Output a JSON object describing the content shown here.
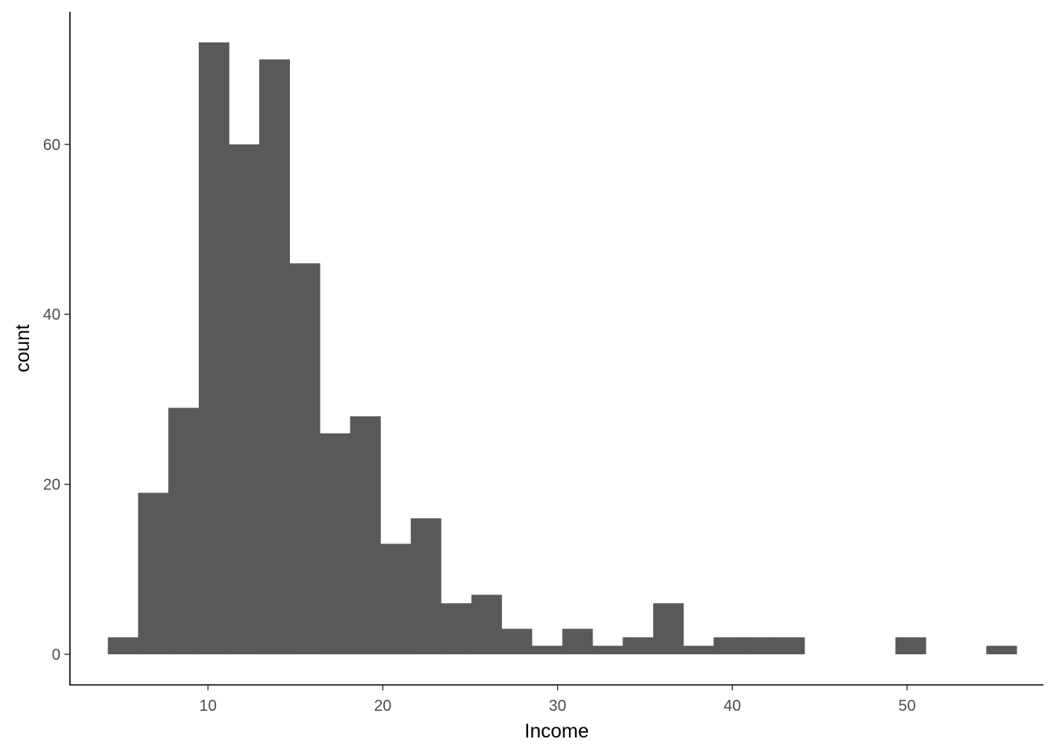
{
  "chart_data": {
    "type": "bar",
    "subtype": "histogram",
    "xlabel": "Income",
    "ylabel": "count",
    "bin_width": 1.733,
    "x_ticks": [
      10,
      20,
      30,
      40,
      50
    ],
    "y_ticks": [
      0,
      20,
      40,
      60
    ],
    "xlim": [
      2.1,
      57.8
    ],
    "ylim": [
      -3.6,
      75.6
    ],
    "grid": false,
    "legend": "none",
    "bar_color": "#595959",
    "bins": [
      {
        "x0": 4.27,
        "x1": 6.0,
        "count": 2
      },
      {
        "x0": 6.0,
        "x1": 7.73,
        "count": 19
      },
      {
        "x0": 7.73,
        "x1": 9.47,
        "count": 29
      },
      {
        "x0": 9.47,
        "x1": 11.2,
        "count": 72
      },
      {
        "x0": 11.2,
        "x1": 12.93,
        "count": 60
      },
      {
        "x0": 12.93,
        "x1": 14.67,
        "count": 70
      },
      {
        "x0": 14.67,
        "x1": 16.4,
        "count": 46
      },
      {
        "x0": 16.4,
        "x1": 18.13,
        "count": 26
      },
      {
        "x0": 18.13,
        "x1": 19.87,
        "count": 28
      },
      {
        "x0": 19.87,
        "x1": 21.6,
        "count": 13
      },
      {
        "x0": 21.6,
        "x1": 23.33,
        "count": 16
      },
      {
        "x0": 23.33,
        "x1": 25.07,
        "count": 6
      },
      {
        "x0": 25.07,
        "x1": 26.8,
        "count": 7
      },
      {
        "x0": 26.8,
        "x1": 28.53,
        "count": 3
      },
      {
        "x0": 28.53,
        "x1": 30.27,
        "count": 1
      },
      {
        "x0": 30.27,
        "x1": 32.0,
        "count": 3
      },
      {
        "x0": 32.0,
        "x1": 33.73,
        "count": 1
      },
      {
        "x0": 33.73,
        "x1": 35.47,
        "count": 2
      },
      {
        "x0": 35.47,
        "x1": 37.2,
        "count": 6
      },
      {
        "x0": 37.2,
        "x1": 38.93,
        "count": 1
      },
      {
        "x0": 38.93,
        "x1": 40.67,
        "count": 2
      },
      {
        "x0": 40.67,
        "x1": 42.4,
        "count": 2
      },
      {
        "x0": 42.4,
        "x1": 44.13,
        "count": 2
      },
      {
        "x0": 44.13,
        "x1": 45.87,
        "count": 0
      },
      {
        "x0": 45.87,
        "x1": 47.6,
        "count": 0
      },
      {
        "x0": 47.6,
        "x1": 49.33,
        "count": 0
      },
      {
        "x0": 49.33,
        "x1": 51.07,
        "count": 2
      },
      {
        "x0": 51.07,
        "x1": 52.8,
        "count": 0
      },
      {
        "x0": 52.8,
        "x1": 54.53,
        "count": 0
      },
      {
        "x0": 54.53,
        "x1": 56.27,
        "count": 1
      }
    ]
  }
}
